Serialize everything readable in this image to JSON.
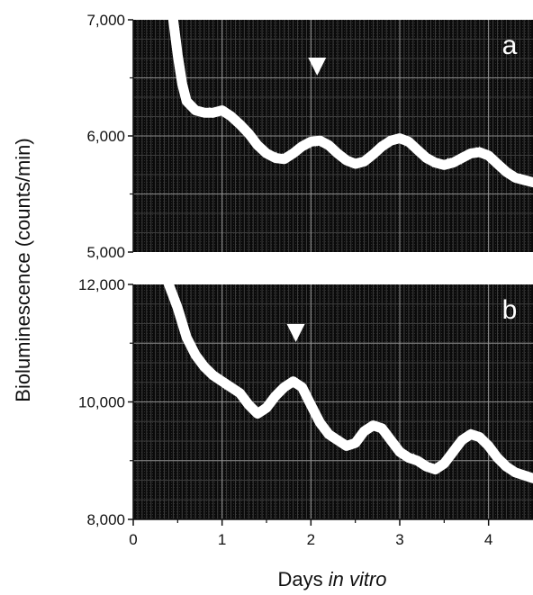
{
  "chart_data": {
    "type": "line",
    "xlabel_prefix": "Days ",
    "xlabel_italic": "in vitro",
    "ylabel": "Bioluminescence (counts/min)",
    "xlim": [
      0,
      4.5
    ],
    "xticks": [
      "0",
      "1",
      "2",
      "3",
      "4"
    ],
    "xtick_values": [
      0,
      1,
      2,
      3,
      4
    ],
    "grid": true,
    "background": "#0a0a0a",
    "trace_color": "#ffffff",
    "panels": [
      {
        "label": "a",
        "ylim": [
          5000,
          7000
        ],
        "yticks": [
          "5,000",
          "6,000",
          "7,000"
        ],
        "ytick_values": [
          5000,
          6000,
          7000
        ],
        "marker_x": 2.07,
        "x": [
          0.45,
          0.5,
          0.55,
          0.6,
          0.7,
          0.8,
          0.9,
          1.0,
          1.1,
          1.2,
          1.3,
          1.4,
          1.5,
          1.6,
          1.7,
          1.8,
          1.9,
          2.0,
          2.1,
          2.2,
          2.3,
          2.4,
          2.5,
          2.6,
          2.7,
          2.8,
          2.9,
          3.0,
          3.1,
          3.2,
          3.3,
          3.4,
          3.5,
          3.6,
          3.7,
          3.8,
          3.9,
          4.0,
          4.1,
          4.2,
          4.3,
          4.4,
          4.5
        ],
        "y": [
          7000,
          6700,
          6450,
          6300,
          6220,
          6200,
          6200,
          6220,
          6170,
          6100,
          6020,
          5920,
          5850,
          5810,
          5800,
          5850,
          5910,
          5950,
          5960,
          5920,
          5850,
          5790,
          5760,
          5780,
          5840,
          5910,
          5960,
          5980,
          5950,
          5880,
          5810,
          5770,
          5750,
          5770,
          5810,
          5850,
          5860,
          5830,
          5760,
          5690,
          5640,
          5620,
          5600
        ]
      },
      {
        "label": "b",
        "ylim": [
          8000,
          12000
        ],
        "yticks": [
          "8,000",
          "10,000",
          "12,000"
        ],
        "ytick_values": [
          8000,
          10000,
          12000
        ],
        "marker_x": 1.83,
        "x": [
          0.4,
          0.5,
          0.6,
          0.7,
          0.8,
          0.9,
          1.0,
          1.1,
          1.2,
          1.3,
          1.4,
          1.5,
          1.6,
          1.7,
          1.8,
          1.9,
          2.0,
          2.1,
          2.2,
          2.3,
          2.4,
          2.5,
          2.6,
          2.7,
          2.8,
          2.9,
          3.0,
          3.1,
          3.2,
          3.3,
          3.4,
          3.5,
          3.6,
          3.7,
          3.8,
          3.9,
          4.0,
          4.1,
          4.2,
          4.3,
          4.4,
          4.5
        ],
        "y": [
          12000,
          11600,
          11100,
          10800,
          10600,
          10450,
          10350,
          10250,
          10150,
          9950,
          9800,
          9900,
          10100,
          10250,
          10350,
          10250,
          9950,
          9650,
          9450,
          9350,
          9250,
          9300,
          9500,
          9600,
          9550,
          9350,
          9150,
          9050,
          9000,
          8900,
          8850,
          8950,
          9150,
          9350,
          9450,
          9400,
          9250,
          9050,
          8900,
          8800,
          8750,
          8700
        ]
      }
    ]
  }
}
